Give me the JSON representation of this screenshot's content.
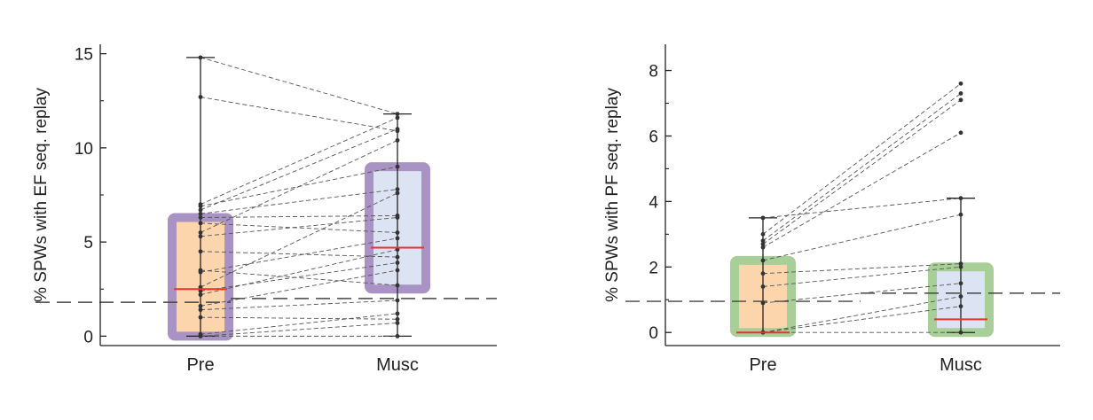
{
  "colors": {
    "axis": "#222222",
    "pre_fill": "#fcd5ad",
    "musc_fill": "#dce3f2",
    "panel1_frame": "#a992c4",
    "panel2_frame": "#a9cf98",
    "median": "#e8322a",
    "pair_line": "#555555",
    "point": "#333333",
    "reference_line": "#444444"
  },
  "chart_data": [
    {
      "type": "box",
      "ylabel": "% SPWs  with EF seq. replay",
      "categories": [
        "Pre",
        "Musc"
      ],
      "ylim": [
        -0.5,
        15.5
      ],
      "yticks": [
        0,
        5,
        10,
        15
      ],
      "ytick_labels": [
        "0",
        "5",
        "10",
        "15"
      ],
      "reference_line": {
        "left": 1.8,
        "right": 2.0,
        "style": "dashed"
      },
      "boxes": [
        {
          "category": "Pre",
          "q1": 0.0,
          "median": 2.5,
          "q3": 6.3,
          "whisker_low": 0.0,
          "whisker_high": 14.8
        },
        {
          "category": "Musc",
          "q1": 2.5,
          "median": 4.7,
          "q3": 9.0,
          "whisker_low": 0.0,
          "whisker_high": 11.8
        }
      ],
      "pairs": [
        [
          14.8,
          11.8
        ],
        [
          12.7,
          10.9
        ],
        [
          7.0,
          11.6
        ],
        [
          6.9,
          9.0
        ],
        [
          6.7,
          11.0
        ],
        [
          6.5,
          7.8
        ],
        [
          6.3,
          6.4
        ],
        [
          6.0,
          5.5
        ],
        [
          5.5,
          10.4
        ],
        [
          5.3,
          6.3
        ],
        [
          4.5,
          4.2
        ],
        [
          3.5,
          2.7
        ],
        [
          3.4,
          5.2
        ],
        [
          2.6,
          7.6
        ],
        [
          2.4,
          3.9
        ],
        [
          2.2,
          4.6
        ],
        [
          1.6,
          3.5
        ],
        [
          1.4,
          1.9
        ],
        [
          1.0,
          0.9
        ],
        [
          0.1,
          1.2
        ],
        [
          0.0,
          0.7
        ],
        [
          0.0,
          0.0
        ]
      ]
    },
    {
      "type": "box",
      "ylabel": "% SPWs  with PF seq. replay",
      "categories": [
        "Pre",
        "Musc"
      ],
      "ylim": [
        -0.4,
        8.8
      ],
      "yticks": [
        0,
        2,
        4,
        6,
        8
      ],
      "ytick_labels": [
        "0",
        "2",
        "4",
        "6",
        "8"
      ],
      "reference_line": {
        "left": 0.95,
        "right": 1.2,
        "style": "dashed"
      },
      "boxes": [
        {
          "category": "Pre",
          "q1": 0.0,
          "median": 0.0,
          "q3": 2.2,
          "whisker_low": 0.0,
          "whisker_high": 3.5
        },
        {
          "category": "Musc",
          "q1": 0.0,
          "median": 0.4,
          "q3": 2.0,
          "whisker_low": 0.0,
          "whisker_high": 4.1
        }
      ],
      "pairs": [
        [
          3.5,
          4.1
        ],
        [
          3.0,
          7.6
        ],
        [
          2.8,
          7.3
        ],
        [
          2.7,
          7.1
        ],
        [
          2.6,
          6.1
        ],
        [
          2.2,
          3.6
        ],
        [
          1.8,
          2.1
        ],
        [
          1.4,
          2.0
        ],
        [
          0.9,
          1.5
        ],
        [
          0.0,
          1.1
        ],
        [
          0.0,
          0.8
        ],
        [
          0.0,
          0.0
        ]
      ]
    }
  ]
}
